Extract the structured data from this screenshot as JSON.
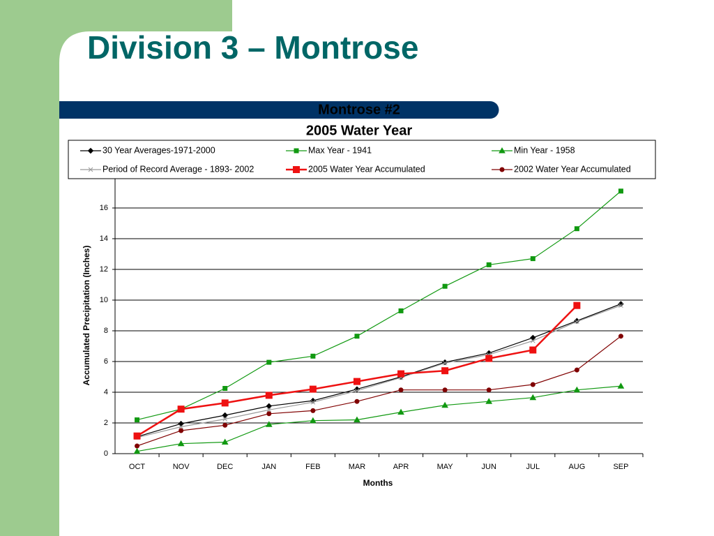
{
  "slide": {
    "title": "Division 3 – Montrose"
  },
  "chart_data": {
    "type": "line",
    "title": "Montrose #2",
    "subtitle": "2005 Water Year",
    "x_label": "Months",
    "y_label": "Accumulated Precipitation (Inches)",
    "categories": [
      "OCT",
      "NOV",
      "DEC",
      "JAN",
      "FEB",
      "MAR",
      "APR",
      "MAY",
      "JUN",
      "JUL",
      "AUG",
      "SEP"
    ],
    "ylim": [
      0,
      18
    ],
    "yticks": [
      0,
      2,
      4,
      6,
      8,
      10,
      12,
      14,
      16
    ],
    "grid": true,
    "legend": "top",
    "series": [
      {
        "name": "30 Year Averages-1971-2000",
        "color": "#000000",
        "marker": "diamond",
        "values": [
          1.1,
          1.95,
          2.5,
          3.1,
          3.45,
          4.2,
          5.0,
          5.95,
          6.55,
          7.55,
          8.65,
          9.75
        ]
      },
      {
        "name": "Max Year - 1941",
        "color": "#119911",
        "marker": "square",
        "values": [
          2.2,
          2.9,
          4.25,
          5.95,
          6.35,
          7.65,
          9.3,
          10.9,
          12.3,
          12.7,
          14.65,
          17.1
        ]
      },
      {
        "name": "Min Year - 1958",
        "color": "#119911",
        "marker": "triangle",
        "values": [
          0.15,
          0.65,
          0.75,
          1.9,
          2.15,
          2.2,
          2.7,
          3.15,
          3.4,
          3.65,
          4.15,
          4.4
        ]
      },
      {
        "name": "Period of Record Average - 1893- 2002",
        "color": "#999999",
        "marker": "x",
        "values": [
          1.05,
          1.75,
          2.25,
          2.85,
          3.35,
          4.1,
          4.95,
          5.9,
          6.45,
          7.35,
          8.6,
          9.65
        ]
      },
      {
        "name": "2005 Water Year Accumulated",
        "color": "#ee1111",
        "marker": "bigsquare",
        "values": [
          1.15,
          2.9,
          3.3,
          3.8,
          4.2,
          4.7,
          5.2,
          5.4,
          6.2,
          6.75,
          9.65,
          null
        ]
      },
      {
        "name": "2002 Water Year Accumulated",
        "color": "#800000",
        "marker": "circle",
        "values": [
          0.5,
          1.5,
          1.85,
          2.6,
          2.8,
          3.4,
          4.15,
          4.15,
          4.15,
          4.5,
          5.45,
          7.65
        ]
      }
    ]
  }
}
